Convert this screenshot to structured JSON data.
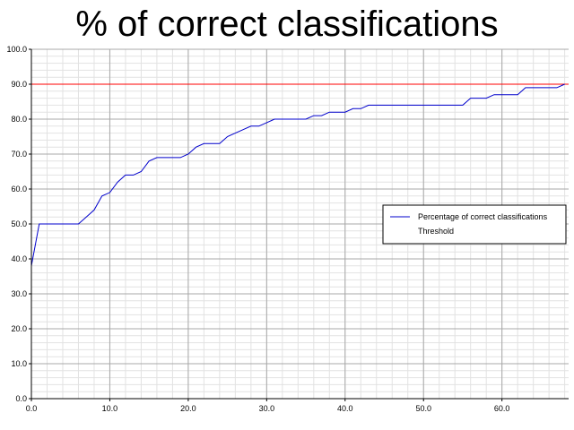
{
  "chart_data": {
    "type": "line",
    "title": "% of correct classifications",
    "xlabel": "",
    "ylabel": "",
    "xlim": [
      0,
      68.5
    ],
    "ylim": [
      0,
      100
    ],
    "x_ticks": [
      "0.0",
      "10.0",
      "20.0",
      "30.0",
      "40.0",
      "50.0",
      "60.0"
    ],
    "y_ticks": [
      "0.0",
      "10.0",
      "20.0",
      "30.0",
      "40.0",
      "50.0",
      "60.0",
      "70.0",
      "80.0",
      "90.0",
      "100.0"
    ],
    "grid": true,
    "legend_position": "right-middle",
    "series": [
      {
        "name": "Percentage of correct classifications",
        "color": "#0000cc",
        "x": [
          0,
          1,
          2,
          3,
          4,
          5,
          6,
          7,
          8,
          9,
          10,
          11,
          12,
          13,
          14,
          15,
          16,
          17,
          18,
          19,
          20,
          21,
          22,
          23,
          24,
          25,
          26,
          27,
          28,
          29,
          30,
          31,
          32,
          33,
          34,
          35,
          36,
          37,
          38,
          39,
          40,
          41,
          42,
          43,
          44,
          45,
          46,
          47,
          48,
          49,
          50,
          51,
          52,
          53,
          54,
          55,
          56,
          57,
          58,
          59,
          60,
          61,
          62,
          63,
          64,
          65,
          66,
          67,
          68
        ],
        "y": [
          38,
          50,
          50,
          50,
          50,
          50,
          50,
          52,
          54,
          58,
          59,
          62,
          64,
          64,
          65,
          68,
          69,
          69,
          69,
          69,
          70,
          72,
          73,
          73,
          73,
          75,
          76,
          77,
          78,
          78,
          79,
          80,
          80,
          80,
          80,
          80,
          81,
          81,
          82,
          82,
          82,
          83,
          83,
          84,
          84,
          84,
          84,
          84,
          84,
          84,
          84,
          84,
          84,
          84,
          84,
          84,
          86,
          86,
          86,
          87,
          87,
          87,
          87,
          89,
          89,
          89,
          89,
          89,
          90
        ]
      },
      {
        "name": "Threshold",
        "color": "#ff0000",
        "x": [
          0,
          68.5
        ],
        "y": [
          90,
          90
        ]
      }
    ]
  }
}
